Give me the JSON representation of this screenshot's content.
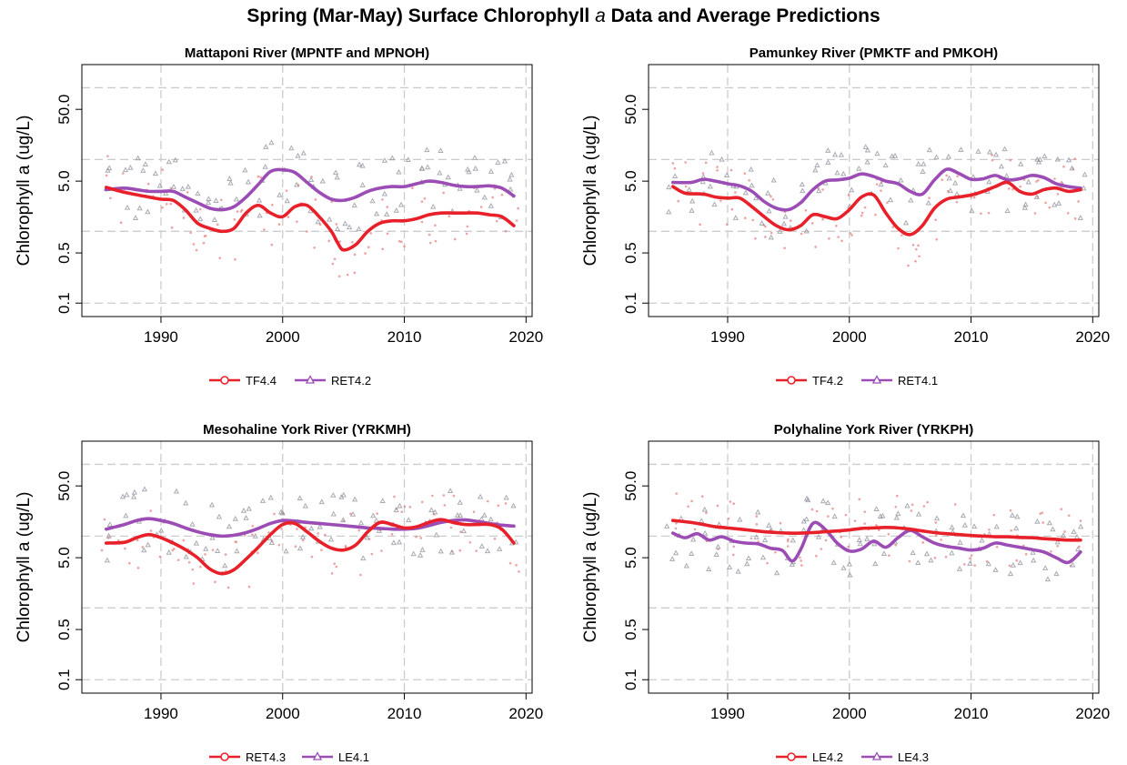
{
  "figure": {
    "title_pre": "Spring (Mar-May) Surface Chlorophyll ",
    "title_italic": "a",
    "title_post": " Data and Average Predictions"
  },
  "chart_data": [
    {
      "type": "line",
      "title": "Mattaponi River (MPNTF and MPNOH)",
      "ylabel": "Chlorophyll a (ug/L)",
      "xlabel": "",
      "y_scale": "log",
      "xlim": [
        1983.5,
        2020.5
      ],
      "ylim": [
        0.065,
        210
      ],
      "x_ticks": [
        1990,
        2000,
        2010,
        2020
      ],
      "y_ticks": [
        0.1,
        0.5,
        5.0,
        50.0
      ],
      "y_gridlines": [
        0.1,
        1,
        10,
        100
      ],
      "grid": true,
      "legend_position": "bottom",
      "series": [
        {
          "name": "TF4.4",
          "color": "#e8202a",
          "marker": "circle",
          "x": [
            1985.5,
            1987,
            1989,
            1990,
            1991,
            1992,
            1993,
            1994,
            1995,
            1996,
            1997,
            1998,
            1999,
            2000,
            2001,
            2002,
            2003,
            2004,
            2004.5,
            2005,
            2006,
            2007,
            2008,
            2009,
            2010,
            2011,
            2012,
            2013,
            2014,
            2015,
            2016,
            2017,
            2018,
            2019
          ],
          "y": [
            4.1,
            3.5,
            3.0,
            2.8,
            2.7,
            2.0,
            1.3,
            1.1,
            1.0,
            1.1,
            1.8,
            2.3,
            1.8,
            1.6,
            2.2,
            2.3,
            1.6,
            1.0,
            0.7,
            0.55,
            0.65,
            1.0,
            1.3,
            1.4,
            1.4,
            1.5,
            1.7,
            1.8,
            1.8,
            1.8,
            1.8,
            1.7,
            1.6,
            1.2
          ]
        },
        {
          "name": "RET4.2",
          "color": "#9b4db5",
          "marker": "triangle",
          "x": [
            1985.5,
            1987,
            1988,
            1989,
            1990,
            1991,
            1992,
            1993,
            1994,
            1995,
            1996,
            1997,
            1998,
            1999,
            2000,
            2001,
            2002,
            2003,
            2004,
            2005,
            2006,
            2007,
            2008,
            2009,
            2010,
            2011,
            2012,
            2013,
            2014,
            2015,
            2016,
            2017,
            2018,
            2019
          ],
          "y": [
            3.8,
            4.0,
            3.8,
            3.6,
            3.6,
            3.6,
            3.0,
            2.5,
            2.1,
            2.0,
            2.2,
            3.0,
            4.5,
            6.8,
            7.2,
            6.6,
            4.8,
            3.5,
            2.8,
            2.7,
            3.0,
            3.6,
            4.0,
            4.2,
            4.2,
            4.6,
            5.0,
            4.8,
            4.4,
            4.2,
            4.2,
            4.3,
            4.0,
            3.1
          ]
        }
      ]
    },
    {
      "type": "line",
      "title": "Pamunkey River (PMKTF and PMKOH)",
      "ylabel": "Chlorophyll a (ug/L)",
      "xlabel": "",
      "y_scale": "log",
      "xlim": [
        1983.5,
        2020.5
      ],
      "ylim": [
        0.065,
        210
      ],
      "x_ticks": [
        1990,
        2000,
        2010,
        2020
      ],
      "y_ticks": [
        0.1,
        0.5,
        5.0,
        50.0
      ],
      "y_gridlines": [
        0.1,
        1,
        10,
        100
      ],
      "grid": true,
      "legend_position": "bottom",
      "series": [
        {
          "name": "TF4.2",
          "color": "#e8202a",
          "marker": "circle",
          "x": [
            1985.5,
            1986.5,
            1988,
            1989,
            1990,
            1991,
            1992,
            1993,
            1994,
            1995,
            1996,
            1997,
            1998,
            1999,
            2000,
            2001,
            2002,
            2003,
            2004,
            2005,
            2006,
            2007,
            2008,
            2009,
            2010,
            2011,
            2012,
            2013,
            2014,
            2015,
            2016,
            2017,
            2018,
            2019
          ],
          "y": [
            4.2,
            3.4,
            3.3,
            3.0,
            2.9,
            2.9,
            2.2,
            1.6,
            1.2,
            1.05,
            1.2,
            1.7,
            1.6,
            1.5,
            2.0,
            3.0,
            3.2,
            1.8,
            1.1,
            0.9,
            1.2,
            2.1,
            2.8,
            3.0,
            3.2,
            3.6,
            4.2,
            4.8,
            3.6,
            3.3,
            3.8,
            4.0,
            3.6,
            3.8
          ]
        },
        {
          "name": "RET4.1",
          "color": "#9b4db5",
          "marker": "triangle",
          "x": [
            1985.5,
            1987,
            1988,
            1989,
            1990,
            1991,
            1992,
            1993,
            1994,
            1995,
            1996,
            1997,
            1998,
            1999,
            2000,
            2001,
            2002,
            2003,
            2004,
            2005,
            2006,
            2007,
            2008,
            2009,
            2010,
            2011,
            2012,
            2013,
            2014,
            2015,
            2016,
            2017,
            2018,
            2019
          ],
          "y": [
            4.8,
            4.8,
            5.3,
            5.0,
            4.6,
            4.3,
            3.6,
            2.6,
            2.1,
            2.0,
            2.5,
            3.8,
            5.0,
            5.2,
            5.5,
            6.3,
            5.8,
            5.0,
            4.6,
            3.6,
            3.3,
            5.2,
            7.3,
            6.4,
            5.3,
            5.4,
            6.0,
            5.2,
            5.4,
            6.0,
            5.6,
            4.6,
            4.2,
            4.0
          ]
        }
      ]
    },
    {
      "type": "line",
      "title": "Mesohaline York River (YRKMH)",
      "ylabel": "Chlorophyll a (ug/L)",
      "xlabel": "",
      "y_scale": "log",
      "xlim": [
        1983.5,
        2020.5
      ],
      "ylim": [
        0.065,
        210
      ],
      "x_ticks": [
        1990,
        2000,
        2010,
        2020
      ],
      "y_ticks": [
        0.1,
        0.5,
        5.0,
        50.0
      ],
      "y_gridlines": [
        0.1,
        1,
        10,
        100
      ],
      "grid": true,
      "legend_position": "bottom",
      "series": [
        {
          "name": "RET4.3",
          "color": "#e8202a",
          "marker": "circle",
          "x": [
            1985.5,
            1987,
            1988,
            1989,
            1990,
            1991,
            1992,
            1993,
            1994,
            1995,
            1996,
            1997,
            1998,
            1999,
            2000,
            2001,
            2002,
            2003,
            2004,
            2005,
            2006,
            2007,
            2008,
            2009,
            2010,
            2011,
            2012,
            2013,
            2014,
            2015,
            2016,
            2017,
            2018,
            2019
          ],
          "y": [
            8.0,
            8.2,
            9.5,
            10.5,
            9.5,
            8.0,
            6.5,
            5.0,
            3.5,
            3.0,
            3.4,
            4.8,
            7.0,
            10.5,
            14.5,
            15.0,
            11.5,
            8.5,
            6.8,
            6.4,
            7.5,
            11.5,
            15.5,
            14.5,
            13.0,
            13.5,
            15.5,
            17.0,
            15.5,
            14.5,
            14.5,
            14.5,
            12.5,
            8.0
          ]
        },
        {
          "name": "LE4.1",
          "color": "#9b4db5",
          "marker": "triangle",
          "x": [
            1985.5,
            1987,
            1988,
            1989,
            1990,
            1991,
            1992,
            1993,
            1994,
            1995,
            1996,
            1997,
            1998,
            1999,
            2000,
            2001,
            2002,
            2003,
            2004,
            2005,
            2006,
            2007,
            2008,
            2009,
            2010,
            2011,
            2012,
            2013,
            2014,
            2015,
            2016,
            2017,
            2018,
            2019
          ],
          "y": [
            12.5,
            14.5,
            16.5,
            17.5,
            16.5,
            15.0,
            13.0,
            11.5,
            10.5,
            10.0,
            10.3,
            11.2,
            12.8,
            15.0,
            16.5,
            16.2,
            15.5,
            15.0,
            14.5,
            14.0,
            13.5,
            13.0,
            12.8,
            12.5,
            12.5,
            12.8,
            14.0,
            15.5,
            16.5,
            16.8,
            16.0,
            15.0,
            14.2,
            13.8
          ]
        }
      ]
    },
    {
      "type": "line",
      "title": "Polyhaline York River (YRKPH)",
      "ylabel": "Chlorophyll a (ug/L)",
      "xlabel": "",
      "y_scale": "log",
      "xlim": [
        1983.5,
        2020.5
      ],
      "ylim": [
        0.065,
        210
      ],
      "x_ticks": [
        1990,
        2000,
        2010,
        2020
      ],
      "y_ticks": [
        0.1,
        0.5,
        5.0,
        50.0
      ],
      "y_gridlines": [
        0.1,
        1,
        10,
        100
      ],
      "grid": true,
      "legend_position": "bottom",
      "series": [
        {
          "name": "LE4.2",
          "color": "#e8202a",
          "marker": "circle",
          "x": [
            1985.5,
            1987,
            1988,
            1989,
            1990,
            1991,
            1992,
            1993,
            1994,
            1995,
            1996,
            1997,
            1998,
            1999,
            2000,
            2001,
            2002,
            2003,
            2004,
            2005,
            2006,
            2007,
            2008,
            2009,
            2010,
            2011,
            2012,
            2013,
            2014,
            2015,
            2016,
            2017,
            2018,
            2019
          ],
          "y": [
            16.5,
            15.5,
            14.5,
            13.5,
            13.0,
            12.5,
            12.0,
            11.5,
            11.2,
            11.0,
            11.0,
            11.2,
            11.5,
            11.8,
            12.2,
            12.8,
            13.0,
            13.2,
            13.0,
            12.5,
            11.8,
            11.2,
            10.8,
            10.5,
            10.2,
            10.0,
            9.8,
            9.8,
            9.6,
            9.5,
            9.2,
            9.0,
            8.8,
            8.8
          ]
        },
        {
          "name": "LE4.3",
          "color": "#9b4db5",
          "marker": "triangle",
          "x": [
            1985.5,
            1986.5,
            1987.5,
            1988.5,
            1989.5,
            1990.5,
            1991.5,
            1992.5,
            1993.5,
            1994.5,
            1995.3,
            1996,
            1997,
            1998,
            1999,
            2000,
            2001,
            2002,
            2003,
            2004,
            2005,
            2006,
            2007,
            2008,
            2009,
            2010,
            2011,
            2012,
            2013,
            2014,
            2015,
            2016,
            2017,
            2018,
            2019
          ],
          "y": [
            11.0,
            9.5,
            10.8,
            8.8,
            9.8,
            8.5,
            8.0,
            7.8,
            6.8,
            6.3,
            4.5,
            6.5,
            15.0,
            12.5,
            8.0,
            6.2,
            6.6,
            8.5,
            7.0,
            9.5,
            12.0,
            9.8,
            8.0,
            7.2,
            6.8,
            6.4,
            6.8,
            8.0,
            7.5,
            7.0,
            6.5,
            6.0,
            5.0,
            4.3,
            6.0
          ]
        }
      ]
    }
  ]
}
